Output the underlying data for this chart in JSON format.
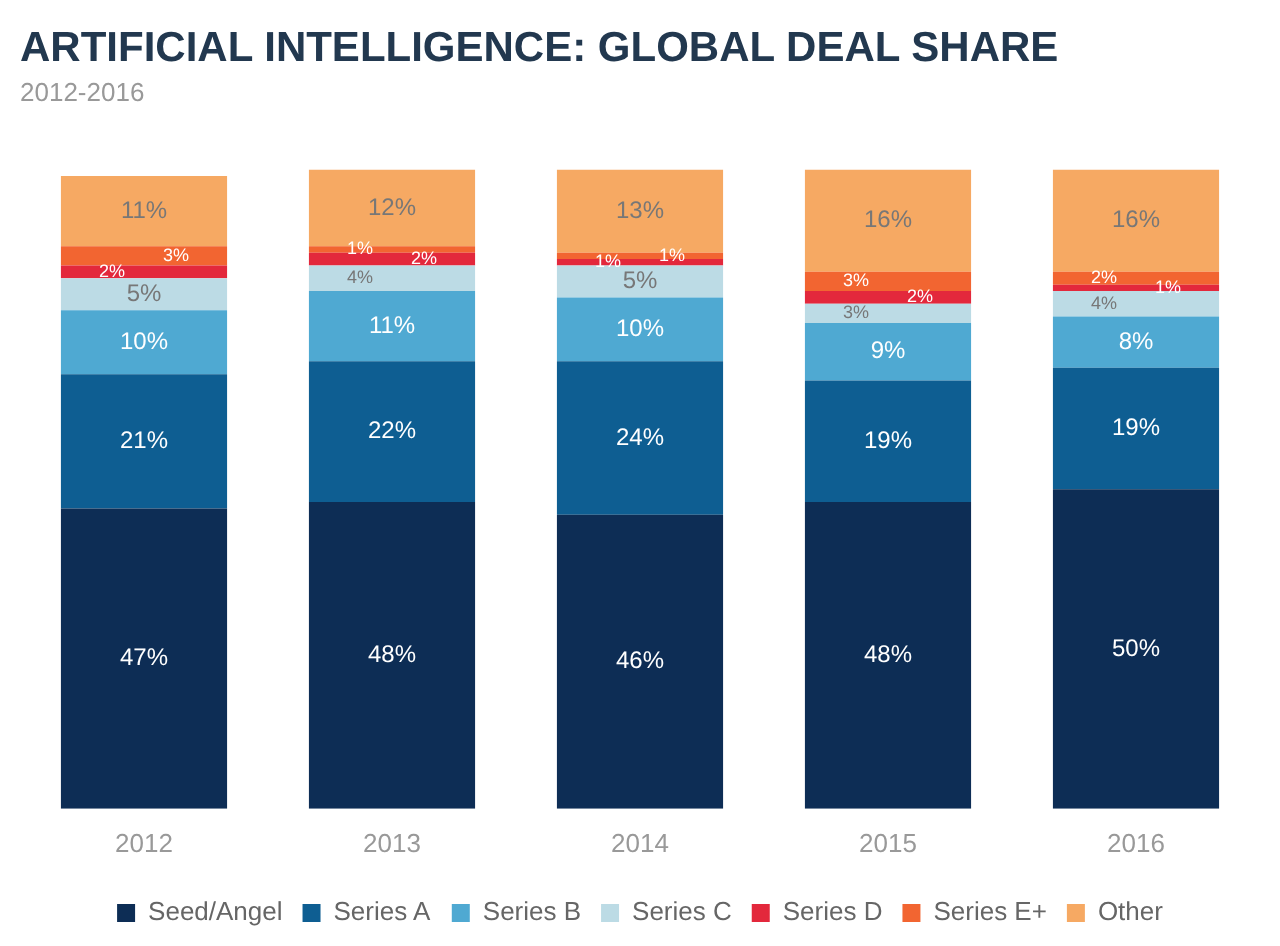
{
  "chart_data": {
    "type": "bar",
    "title": "ARTIFICIAL INTELLIGENCE: GLOBAL DEAL SHARE",
    "subtitle": "2012-2016",
    "categories": [
      "2012",
      "2013",
      "2014",
      "2015",
      "2016"
    ],
    "stacked": true,
    "legend": "bottom",
    "grid": false,
    "tick_labels": "x",
    "series": [
      {
        "name": "Seed/Angel",
        "color": "#0d2d55",
        "values": [
          47,
          48,
          46,
          48,
          50
        ],
        "value_labels": [
          "47%",
          "48%",
          "46%",
          "48%",
          "50%"
        ]
      },
      {
        "name": "Series A",
        "color": "#0e5e92",
        "values": [
          21,
          22,
          24,
          19,
          19
        ],
        "value_labels": [
          "21%",
          "22%",
          "24%",
          "19%",
          "19%"
        ]
      },
      {
        "name": "Series B",
        "color": "#4fa9d2",
        "values": [
          10,
          11,
          10,
          9,
          8
        ],
        "value_labels": [
          "10%",
          "11%",
          "10%",
          "9%",
          "8%"
        ]
      },
      {
        "name": "Series C",
        "color": "#bcdbe5",
        "values": [
          5,
          4,
          5,
          3,
          4
        ],
        "value_labels": [
          "5%",
          "4%",
          "5%",
          "3%",
          "4%"
        ]
      },
      {
        "name": "Series D",
        "color": "#e3283c",
        "values": [
          2,
          2,
          1,
          2,
          1
        ],
        "value_labels": [
          "2%",
          "2%",
          "1%",
          "2%",
          "1%"
        ]
      },
      {
        "name": "Series E+",
        "color": "#f26531",
        "values": [
          3,
          1,
          1,
          3,
          2
        ],
        "value_labels": [
          "3%",
          "1%",
          "1%",
          "3%",
          "2%"
        ]
      },
      {
        "name": "Other",
        "color": "#f6a963",
        "values": [
          11,
          12,
          13,
          16,
          16
        ],
        "value_labels": [
          "11%",
          "12%",
          "13%",
          "16%",
          "16%"
        ]
      }
    ]
  }
}
